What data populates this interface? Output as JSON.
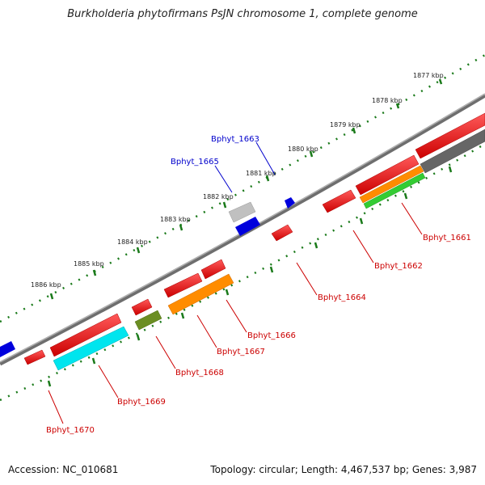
{
  "title": "Burkholderia phytofirmans PsJN chromosome 1, complete genome",
  "footer": {
    "accession": "Accession: NC_010681",
    "summary": "Topology: circular; Length: 4,467,537 bp; Genes: 3,987"
  },
  "scale_ticks": [
    {
      "label": "1877 kbp"
    },
    {
      "label": "1878 kbp"
    },
    {
      "label": "1879 kbp"
    },
    {
      "label": "1880 kbp"
    },
    {
      "label": "1881 kbp"
    },
    {
      "label": "1882 kbp"
    },
    {
      "label": "1883 kbp"
    },
    {
      "label": "1884 kbp"
    },
    {
      "label": "1885 kbp"
    },
    {
      "label": "1886 kbp"
    }
  ],
  "gene_labels": [
    {
      "text": "Bphyt_1663",
      "color": "#0000cc"
    },
    {
      "text": "Bphyt_1665",
      "color": "#0000cc"
    },
    {
      "text": "Bphyt_1661",
      "color": "#cc0000"
    },
    {
      "text": "Bphyt_1662",
      "color": "#cc0000"
    },
    {
      "text": "Bphyt_1664",
      "color": "#cc0000"
    },
    {
      "text": "Bphyt_1666",
      "color": "#cc0000"
    },
    {
      "text": "Bphyt_1667",
      "color": "#cc0000"
    },
    {
      "text": "Bphyt_1668",
      "color": "#cc0000"
    },
    {
      "text": "Bphyt_1669",
      "color": "#cc0000"
    },
    {
      "text": "Bphyt_1670",
      "color": "#cc0000"
    }
  ],
  "colors": {
    "backbone": "#7a7a7a",
    "tick_dots": "#1a7a1a",
    "forward_gene": "#ee0000",
    "reverse_gene_blue": "#0000dd",
    "orange_gene": "#ff8c00",
    "cyan_gene": "#00e5ee",
    "olive_gene": "#6b8e23",
    "green_gene": "#33cc33",
    "gray_gene": "#666666",
    "light_gray_gene": "#bbbbbb"
  }
}
